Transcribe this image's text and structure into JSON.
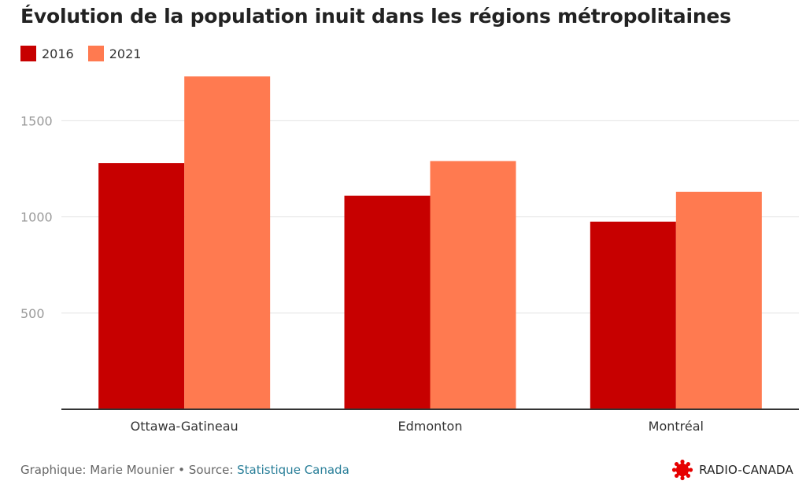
{
  "title": "Évolution de la population inuit dans les régions métropolitaines",
  "legend": [
    {
      "label": "2016",
      "color": "#c70000"
    },
    {
      "label": "2021",
      "color": "#ff7a50"
    }
  ],
  "footer": {
    "credit": "Graphique: Marie Mounier • Source: ",
    "source": "Statistique Canada"
  },
  "brand": {
    "name": "RADIO-CANADA",
    "logo_icon": "radio-canada-gem-icon",
    "color": "#e60000"
  },
  "chart_data": {
    "type": "bar",
    "categories": [
      "Ottawa-Gatineau",
      "Edmonton",
      "Montréal"
    ],
    "series": [
      {
        "name": "2016",
        "values": [
          1280,
          1110,
          975
        ],
        "color": "#c70000"
      },
      {
        "name": "2021",
        "values": [
          1730,
          1290,
          1130
        ],
        "color": "#ff7a50"
      }
    ],
    "yticks": [
      500,
      1000,
      1500
    ],
    "ylim": [
      0,
      1800
    ],
    "grid": true,
    "legend_position": "top-left"
  }
}
